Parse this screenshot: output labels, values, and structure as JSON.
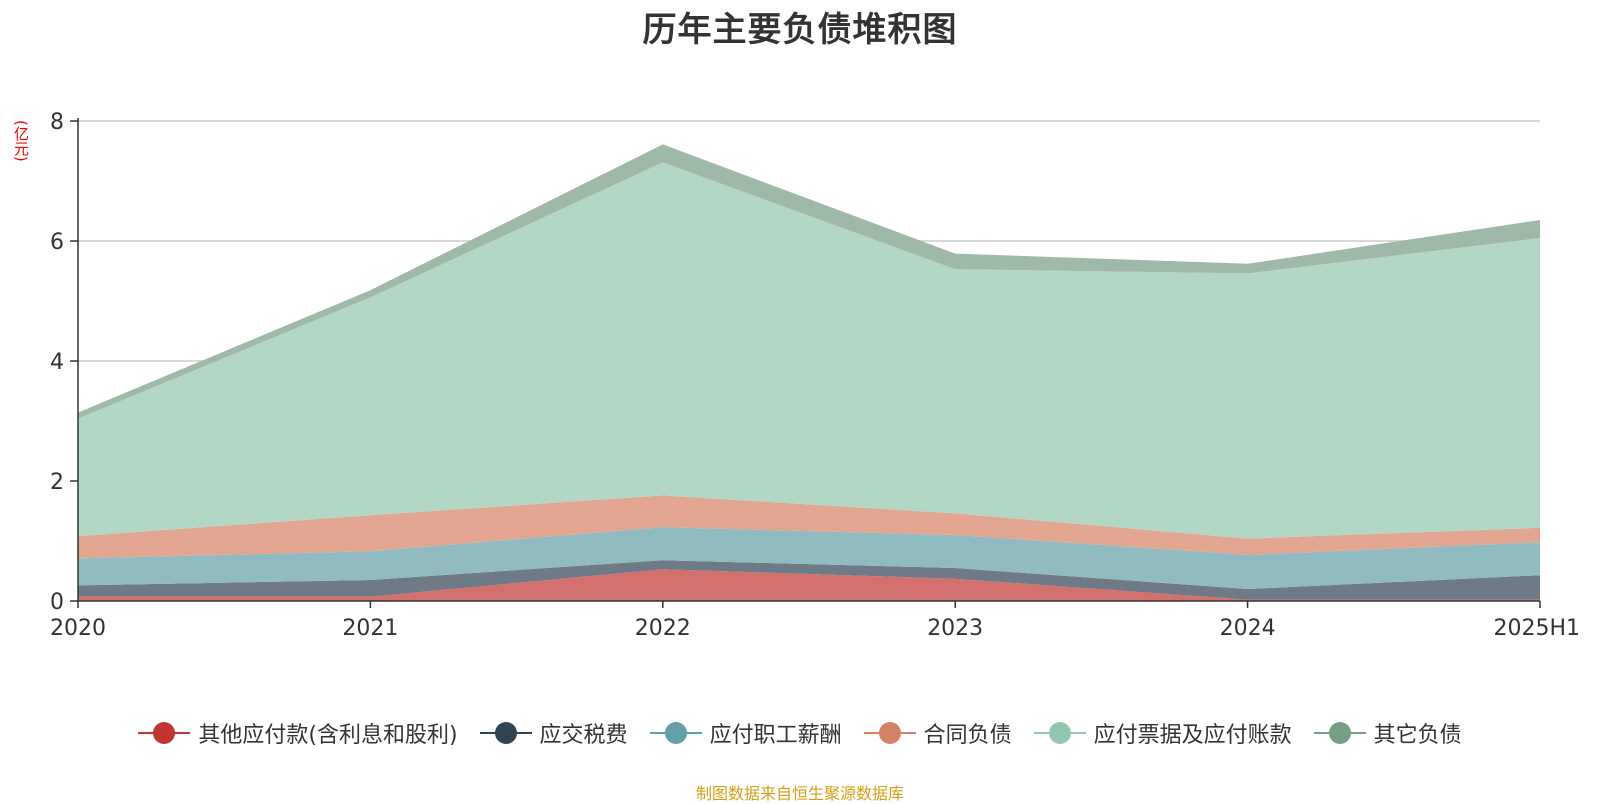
{
  "chart_data": {
    "type": "area",
    "stacked": true,
    "title": "历年主要负债堆积图",
    "unit_label": "(亿元)",
    "categories": [
      "2020",
      "2021",
      "2022",
      "2023",
      "2024",
      "2025H1"
    ],
    "ylim": [
      0,
      8
    ],
    "yticks": [
      "0",
      "2",
      "4",
      "6",
      "8"
    ],
    "grid": true,
    "legend_position": "bottom",
    "series": [
      {
        "name": "其他应付款(含利息和股利)",
        "color": "#c23531",
        "fill": "#d4706d",
        "values": [
          0.07,
          0.07,
          0.53,
          0.37,
          0.02,
          0.02
        ]
      },
      {
        "name": "应交税费",
        "color": "#2f4554",
        "fill": "#6e7a86",
        "values": [
          0.19,
          0.28,
          0.15,
          0.18,
          0.18,
          0.41
        ]
      },
      {
        "name": "应付职工薪酬",
        "color": "#61a0a8",
        "fill": "#90bcc1",
        "values": [
          0.45,
          0.48,
          0.55,
          0.55,
          0.57,
          0.55
        ]
      },
      {
        "name": "合同负债",
        "color": "#d48265",
        "fill": "#e1a590",
        "values": [
          0.37,
          0.6,
          0.53,
          0.36,
          0.27,
          0.24
        ]
      },
      {
        "name": "应付票据及应付账款",
        "color": "#91c7ae",
        "fill": "#b2d7c5",
        "values": [
          1.96,
          3.63,
          5.55,
          4.07,
          4.42,
          4.83
        ]
      },
      {
        "name": "其它负债",
        "color": "#749f83",
        "fill": "#9eb9a7",
        "values": [
          0.1,
          0.12,
          0.3,
          0.26,
          0.16,
          0.3
        ]
      }
    ]
  },
  "source_note": "制图数据来自恒生聚源数据库"
}
